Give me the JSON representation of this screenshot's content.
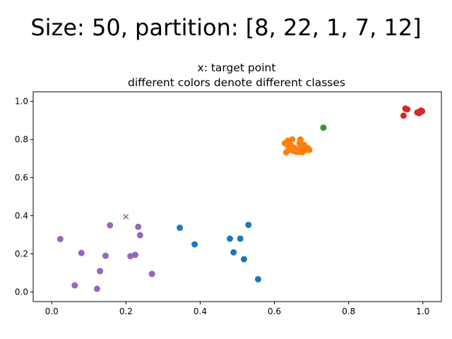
{
  "figure": {
    "suptitle": "Size: 50, partition: [8, 22, 1, 7, 12]"
  },
  "chart_data": {
    "type": "scatter",
    "title": "x: target point\ndifferent colors denote different classes",
    "title_lines": [
      "x: target point",
      "different colors denote different classes"
    ],
    "xlabel": "",
    "ylabel": "",
    "xlim": [
      -0.05,
      1.05
    ],
    "ylim": [
      -0.05,
      1.05
    ],
    "xticks": [
      0.0,
      0.2,
      0.4,
      0.6,
      0.8,
      1.0
    ],
    "yticks": [
      0.0,
      0.2,
      0.4,
      0.6,
      0.8,
      1.0
    ],
    "xtick_labels": [
      "0.0",
      "0.2",
      "0.4",
      "0.6",
      "0.8",
      "1.0"
    ],
    "ytick_labels": [
      "0.0",
      "0.2",
      "0.4",
      "0.6",
      "0.8",
      "1.0"
    ],
    "grid": false,
    "legend": false,
    "series": [
      {
        "color": "#1f77b4",
        "points": [
          [
            0.345,
            0.337
          ],
          [
            0.385,
            0.25
          ],
          [
            0.48,
            0.28
          ],
          [
            0.49,
            0.208
          ],
          [
            0.508,
            0.28
          ],
          [
            0.518,
            0.172
          ],
          [
            0.53,
            0.352
          ],
          [
            0.556,
            0.067
          ]
        ]
      },
      {
        "color": "#ff7f0e",
        "points": [
          [
            0.628,
            0.78
          ],
          [
            0.632,
            0.733
          ],
          [
            0.636,
            0.793
          ],
          [
            0.638,
            0.76
          ],
          [
            0.642,
            0.745
          ],
          [
            0.645,
            0.768
          ],
          [
            0.648,
            0.8
          ],
          [
            0.652,
            0.74
          ],
          [
            0.655,
            0.755
          ],
          [
            0.658,
            0.738
          ],
          [
            0.662,
            0.745
          ],
          [
            0.665,
            0.735
          ],
          [
            0.668,
            0.78
          ],
          [
            0.67,
            0.8
          ],
          [
            0.672,
            0.762
          ],
          [
            0.675,
            0.733
          ],
          [
            0.678,
            0.75
          ],
          [
            0.68,
            0.772
          ],
          [
            0.685,
            0.745
          ],
          [
            0.69,
            0.755
          ],
          [
            0.694,
            0.745
          ],
          [
            0.66,
            0.735
          ]
        ]
      },
      {
        "color": "#2ca02c",
        "points": [
          [
            0.732,
            0.862
          ]
        ]
      },
      {
        "color": "#d62728",
        "points": [
          [
            0.948,
            0.925
          ],
          [
            0.953,
            0.962
          ],
          [
            0.958,
            0.958
          ],
          [
            0.985,
            0.942
          ],
          [
            0.99,
            0.938
          ],
          [
            0.995,
            0.952
          ],
          [
            0.998,
            0.948
          ]
        ]
      },
      {
        "color": "#9467bd",
        "points": [
          [
            0.023,
            0.278
          ],
          [
            0.062,
            0.035
          ],
          [
            0.08,
            0.205
          ],
          [
            0.122,
            0.017
          ],
          [
            0.13,
            0.11
          ],
          [
            0.145,
            0.19
          ],
          [
            0.157,
            0.35
          ],
          [
            0.212,
            0.188
          ],
          [
            0.225,
            0.195
          ],
          [
            0.233,
            0.342
          ],
          [
            0.238,
            0.298
          ],
          [
            0.27,
            0.095
          ]
        ]
      }
    ],
    "target": {
      "point": [
        0.2,
        0.395
      ],
      "color": "#8c564b",
      "marker": "x"
    }
  }
}
